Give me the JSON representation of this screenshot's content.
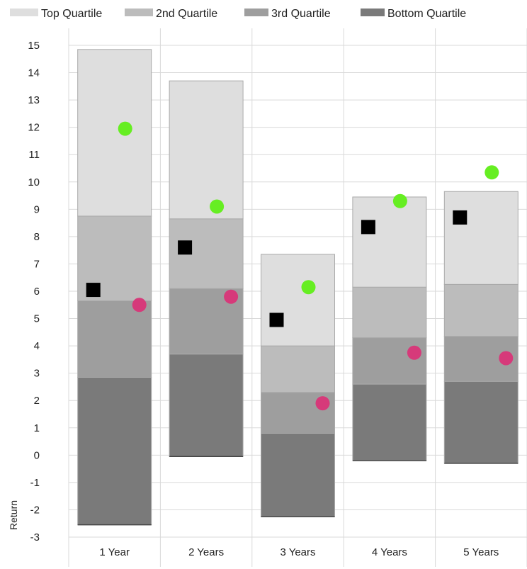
{
  "chart_data": {
    "type": "bar",
    "subtype": "stacked-floating-bar-with-markers",
    "title": "",
    "xlabel": "",
    "ylabel": "Return",
    "ylim": [
      -3,
      15
    ],
    "yticks": [
      15,
      14,
      13,
      12,
      11,
      10,
      9,
      8,
      7,
      6,
      5,
      4,
      3,
      2,
      1,
      0,
      -1,
      -2,
      -3
    ],
    "grid": true,
    "legend_position": "top",
    "categories": [
      "1 Year",
      "2 Years",
      "3 Years",
      "4 Years",
      "5 Years"
    ],
    "series": [
      {
        "name": "Bottom Quartile",
        "color": "#7a7a7a",
        "low": [
          -2.55,
          -0.05,
          -2.25,
          -0.2,
          -0.3
        ],
        "high": [
          2.85,
          3.7,
          0.8,
          2.6,
          2.7
        ]
      },
      {
        "name": "3rd Quartile",
        "color": "#9e9e9e",
        "low": [
          2.85,
          3.7,
          0.8,
          2.6,
          2.7
        ],
        "high": [
          5.65,
          6.1,
          2.3,
          4.3,
          4.35
        ]
      },
      {
        "name": "2nd Quartile",
        "color": "#bcbcbc",
        "low": [
          5.65,
          6.1,
          2.3,
          4.3,
          4.35
        ],
        "high": [
          8.75,
          8.65,
          4.0,
          6.15,
          6.25
        ]
      },
      {
        "name": "Top Quartile",
        "color": "#dedede",
        "low": [
          8.75,
          8.65,
          4.0,
          6.15,
          6.25
        ],
        "high": [
          14.85,
          13.7,
          7.35,
          9.45,
          9.65
        ]
      }
    ],
    "legend_order": [
      "Top Quartile",
      "2nd Quartile",
      "3rd Quartile",
      "Bottom Quartile"
    ],
    "markers": [
      {
        "shape": "square",
        "color": "#000000",
        "values": [
          6.05,
          7.6,
          4.95,
          8.35,
          8.7
        ]
      },
      {
        "shape": "circle",
        "color": "#66ee22",
        "values": [
          11.95,
          9.1,
          6.15,
          9.3,
          10.35
        ]
      },
      {
        "shape": "circle",
        "color": "#d63a7a",
        "values": [
          5.5,
          5.8,
          1.9,
          3.75,
          3.55
        ]
      }
    ]
  }
}
